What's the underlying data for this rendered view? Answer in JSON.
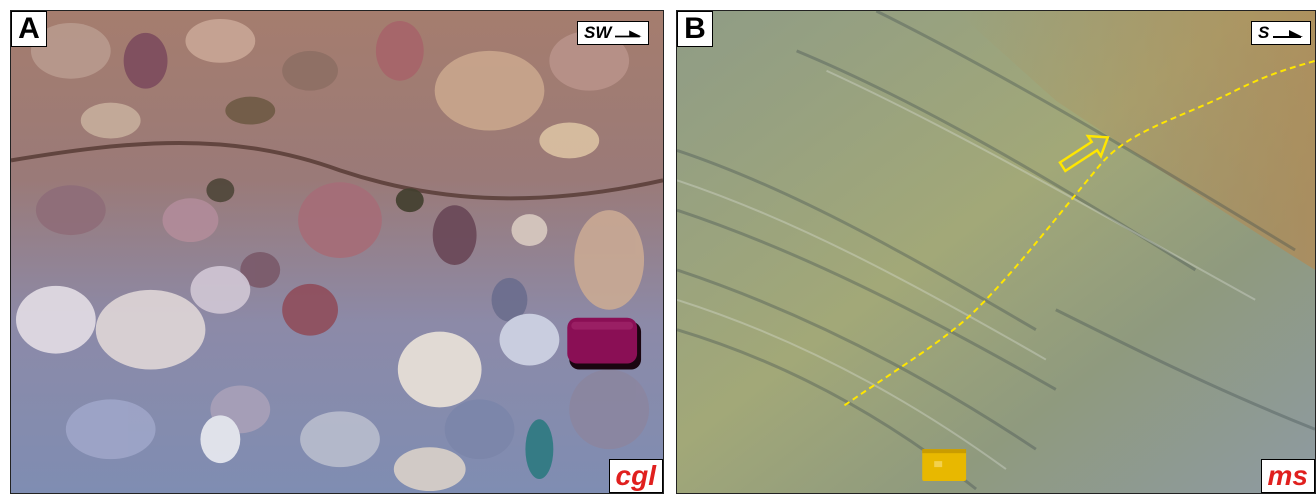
{
  "panels": [
    {
      "letter": "A",
      "direction": "SW",
      "unit_label": "cgl",
      "subject": "conglomerate-outcrop",
      "scale_object": "magenta-pocket-case"
    },
    {
      "letter": "B",
      "direction": "S",
      "unit_label": "ms",
      "subject": "foliated-schist-outcrop",
      "scale_object": "yellow-field-book",
      "annotations": [
        "yellow-dashed-shear-line",
        "yellow-outline-arrow"
      ]
    }
  ],
  "colors": {
    "label_text": "#000000",
    "label_bg": "#ffffff",
    "unit_label": "#e0201e",
    "annotation": "#ffe600",
    "case": "#8a0f55",
    "field_book": "#e8b800"
  }
}
